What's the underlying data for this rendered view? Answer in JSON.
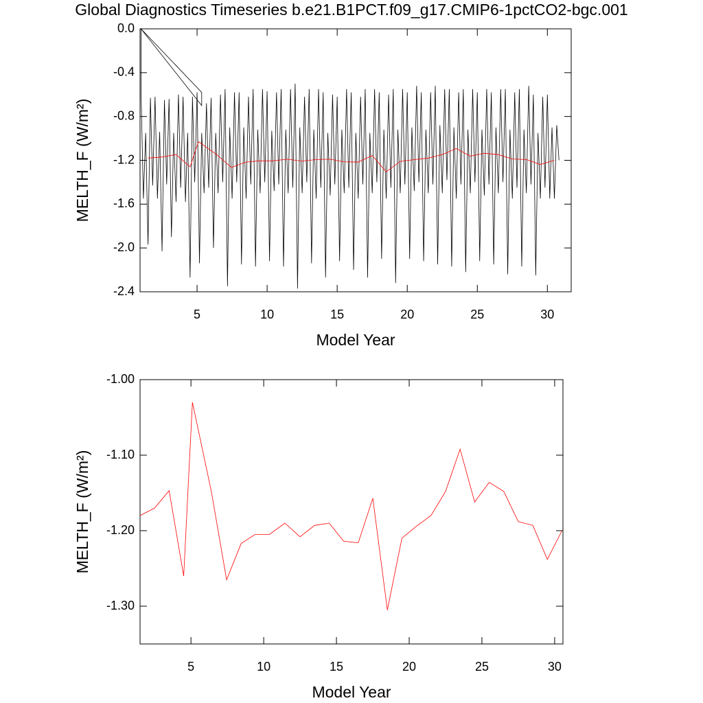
{
  "chart_data": [
    {
      "type": "line",
      "title": "Global Diagnostics Timeseries b.e21.B1PCT.f09_g17.CMIP6-1pctCO2-bgc.001",
      "xlabel": "Model Year",
      "ylabel": "MELTH_F (W/m²)",
      "xlim": [
        0.93,
        31.7
      ],
      "ylim": [
        -2.4,
        0.0
      ],
      "xticks": [
        5,
        10,
        15,
        20,
        25,
        30
      ],
      "yticks": [
        {
          "value": -2.4,
          "label": "-2.4"
        },
        {
          "value": -2.0,
          "label": "-2.0"
        },
        -1.6,
        -1.2,
        -0.8,
        -0.4,
        {
          "value": 0.0,
          "label": "0.0"
        }
      ],
      "series": [
        {
          "color": "#000000",
          "x": [
            1.0,
            5.33,
            5.33,
            1.0,
            1.0,
            1.17,
            1.33,
            1.5,
            1.67,
            1.83,
            2.0,
            2.17,
            2.33,
            2.5,
            2.67,
            2.83,
            3.0,
            3.17,
            3.33,
            3.5,
            3.67,
            3.83,
            4.0,
            4.17,
            4.33,
            4.5,
            4.67,
            4.83,
            5.0,
            5.17,
            5.33,
            5.5,
            5.67,
            5.83,
            6.0,
            6.17,
            6.33,
            6.5,
            6.67,
            6.83,
            7.0,
            7.17,
            7.33,
            7.5,
            7.67,
            7.83,
            8.0,
            8.17,
            8.33,
            8.5,
            8.67,
            8.83,
            9.0,
            9.17,
            9.33,
            9.5,
            9.67,
            9.83,
            10.0,
            10.17,
            10.33,
            10.5,
            10.67,
            10.83,
            11.0,
            11.17,
            11.33,
            11.5,
            11.67,
            11.83,
            12.0,
            12.17,
            12.33,
            12.5,
            12.67,
            12.83,
            13.0,
            13.17,
            13.33,
            13.5,
            13.67,
            13.83,
            14.0,
            14.17,
            14.33,
            14.5,
            14.67,
            14.83,
            15.0,
            15.17,
            15.33,
            15.5,
            15.67,
            15.83,
            16.0,
            16.17,
            16.33,
            16.5,
            16.67,
            16.83,
            17.0,
            17.17,
            17.33,
            17.5,
            17.67,
            17.83,
            18.0,
            18.17,
            18.33,
            18.5,
            18.67,
            18.83,
            19.0,
            19.17,
            19.33,
            19.5,
            19.67,
            19.83,
            20.0,
            20.17,
            20.33,
            20.5,
            20.67,
            20.83,
            21.0,
            21.17,
            21.33,
            21.5,
            21.67,
            21.83,
            22.0,
            22.17,
            22.33,
            22.5,
            22.67,
            22.83,
            23.0,
            23.17,
            23.33,
            23.5,
            23.67,
            23.83,
            24.0,
            24.17,
            24.33,
            24.5,
            24.67,
            24.83,
            25.0,
            25.17,
            25.33,
            25.5,
            25.67,
            25.83,
            26.0,
            26.17,
            26.33,
            26.5,
            26.67,
            26.83,
            27.0,
            27.17,
            27.33,
            27.5,
            27.67,
            27.83,
            28.0,
            28.17,
            28.33,
            28.5,
            28.67,
            28.83,
            29.0,
            29.17,
            29.33,
            29.5,
            29.67,
            29.83,
            30.0,
            30.17,
            30.33,
            30.5,
            30.67,
            30.83
          ],
          "values": [
            0.0,
            -0.58,
            -0.7,
            0.0,
            -0.58,
            -1.55,
            -0.95,
            -1.97,
            -0.63,
            -1.43,
            -0.62,
            -1.55,
            -0.94,
            -2.03,
            -0.65,
            -1.42,
            -0.64,
            -1.9,
            -0.95,
            -1.58,
            -0.6,
            -1.45,
            -0.62,
            -1.58,
            -0.95,
            -2.27,
            -0.62,
            -1.4,
            -0.58,
            -2.14,
            -0.95,
            -1.5,
            -0.68,
            -1.45,
            -0.63,
            -2.0,
            -0.95,
            -1.5,
            -0.6,
            -1.4,
            -0.55,
            -2.35,
            -0.9,
            -1.55,
            -0.58,
            -1.4,
            -0.58,
            -2.15,
            -0.9,
            -1.55,
            -0.62,
            -1.42,
            -0.55,
            -2.17,
            -0.92,
            -1.5,
            -0.55,
            -1.4,
            -0.57,
            -2.12,
            -0.93,
            -1.48,
            -0.58,
            -1.42,
            -0.55,
            -2.17,
            -0.92,
            -1.5,
            -0.55,
            -1.45,
            -0.5,
            -2.37,
            -0.9,
            -1.5,
            -0.62,
            -1.4,
            -0.55,
            -2.14,
            -0.92,
            -1.55,
            -0.55,
            -1.45,
            -0.58,
            -2.27,
            -0.95,
            -1.52,
            -0.6,
            -1.42,
            -0.62,
            -2.12,
            -0.92,
            -1.5,
            -0.55,
            -1.45,
            -0.58,
            -2.2,
            -0.95,
            -1.55,
            -0.62,
            -1.42,
            -0.55,
            -2.27,
            -0.95,
            -1.5,
            -0.55,
            -1.4,
            -0.58,
            -2.1,
            -0.92,
            -1.55,
            -0.6,
            -1.45,
            -0.55,
            -2.32,
            -0.92,
            -1.5,
            -0.55,
            -1.42,
            -0.58,
            -2.1,
            -0.9,
            -1.48,
            -0.52,
            -1.4,
            -0.58,
            -2.12,
            -0.92,
            -1.5,
            -0.58,
            -1.42,
            -0.52,
            -2.15,
            -0.88,
            -1.5,
            -0.55,
            -1.38,
            -0.55,
            -2.17,
            -0.9,
            -1.55,
            -0.58,
            -1.42,
            -0.55,
            -2.22,
            -0.92,
            -1.5,
            -0.55,
            -1.4,
            -0.58,
            -2.12,
            -0.92,
            -1.52,
            -0.55,
            -1.42,
            -0.58,
            -2.15,
            -0.9,
            -1.5,
            -0.55,
            -1.4,
            -0.55,
            -2.24,
            -0.92,
            -1.55,
            -0.58,
            -1.45,
            -0.55,
            -2.17,
            -0.92,
            -1.5,
            -0.52,
            -1.42,
            -0.6,
            -2.25,
            -0.95,
            -1.55,
            -0.62,
            -1.45,
            -0.6,
            -1.55,
            -0.9,
            -1.55,
            -0.88,
            -1.2
          ]
        },
        {
          "color": "#ff0000",
          "x": [
            1.5,
            2.5,
            3.5,
            4.5,
            5.1,
            6.4,
            7.45,
            8.45,
            9.4,
            10.4,
            11.45,
            12.5,
            13.5,
            14.5,
            15.5,
            16.5,
            17.5,
            18.5,
            19.5,
            20.5,
            21.5,
            22.5,
            23.5,
            24.5,
            25.5,
            26.5,
            27.5,
            28.5,
            29.5,
            30.5
          ],
          "values": [
            -1.18,
            -1.17,
            -1.147,
            -1.26,
            -1.03,
            -1.148,
            -1.265,
            -1.217,
            -1.205,
            -1.205,
            -1.19,
            -1.208,
            -1.193,
            -1.19,
            -1.214,
            -1.216,
            -1.157,
            -1.305,
            -1.21,
            -1.194,
            -1.18,
            -1.148,
            -1.092,
            -1.162,
            -1.136,
            -1.148,
            -1.188,
            -1.193,
            -1.238,
            -1.2
          ]
        }
      ]
    },
    {
      "type": "line",
      "xlabel": "Model Year",
      "ylabel": "MELTH_F (W/m²)",
      "xlim": [
        1.5,
        30.57
      ],
      "ylim": [
        -1.35,
        -1.0
      ],
      "xticks": [
        5,
        10,
        15,
        20,
        25,
        30
      ],
      "yticks": [
        {
          "value": -1.3,
          "label": "-1.30"
        },
        {
          "value": -1.2,
          "label": "-1.20"
        },
        {
          "value": -1.1,
          "label": "-1.10"
        },
        {
          "value": -1.0,
          "label": "-1.00"
        }
      ],
      "series": [
        {
          "color": "#ff0000",
          "x": [
            1.5,
            2.5,
            3.5,
            4.5,
            5.1,
            6.4,
            7.45,
            8.45,
            9.4,
            10.4,
            11.45,
            12.5,
            13.5,
            14.5,
            15.5,
            16.5,
            17.5,
            18.5,
            19.5,
            20.5,
            21.5,
            22.5,
            23.5,
            24.5,
            25.5,
            26.5,
            27.5,
            28.5,
            29.5,
            30.5
          ],
          "values": [
            -1.18,
            -1.17,
            -1.147,
            -1.26,
            -1.03,
            -1.148,
            -1.265,
            -1.217,
            -1.205,
            -1.205,
            -1.19,
            -1.208,
            -1.193,
            -1.19,
            -1.214,
            -1.216,
            -1.157,
            -1.305,
            -1.21,
            -1.194,
            -1.18,
            -1.148,
            -1.092,
            -1.162,
            -1.136,
            -1.148,
            -1.188,
            -1.193,
            -1.238,
            -1.2
          ]
        }
      ]
    }
  ]
}
